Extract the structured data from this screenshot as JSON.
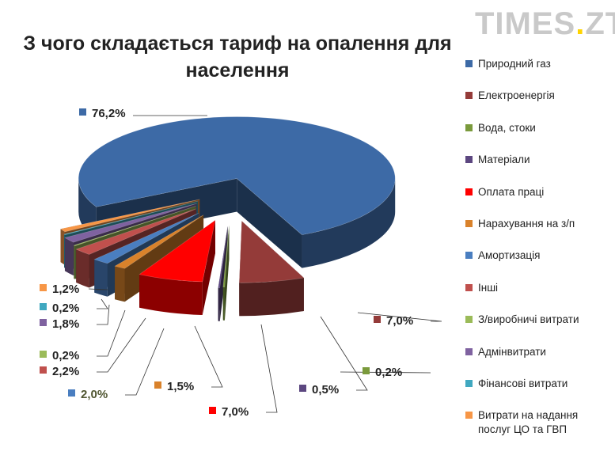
{
  "logo": {
    "text_main": "TIMES",
    "text_dot": ".",
    "text_suffix": "ZT"
  },
  "chart_data": {
    "type": "pie",
    "title_line1": "З чого складається тариф на опалення для",
    "title_line2": "населення",
    "legend_placement": "right",
    "categories": [
      "Природний газ",
      "Електроенергія",
      "Вода, стоки",
      "Матеріали",
      "Оплата праці",
      "Нарахування на з/п",
      "Амортизація",
      "Інші",
      "З/виробничі витрати",
      "Адмінвитрати",
      "Фінансові витрати",
      "Витрати на надання послуг ЦО та ГВП"
    ],
    "values": [
      76.2,
      7.0,
      0.2,
      0.5,
      7.0,
      1.5,
      2.0,
      2.2,
      0.2,
      1.8,
      0.2,
      1.2
    ],
    "labels": [
      "76,2%",
      "7,0%",
      "0,2%",
      "0,5%",
      "7,0%",
      "1,5%",
      "2,0%",
      "2,2%",
      "0,2%",
      "1,8%",
      "0,2%",
      "1,2%"
    ],
    "colors": [
      "#3d6aa6",
      "#943b39",
      "#7a9a3c",
      "#5c4780",
      "#ff0000",
      "#d9822b",
      "#4a7ec0",
      "#c0504d",
      "#9bbb59",
      "#7f62a0",
      "#40a8c0",
      "#f79646"
    ]
  }
}
